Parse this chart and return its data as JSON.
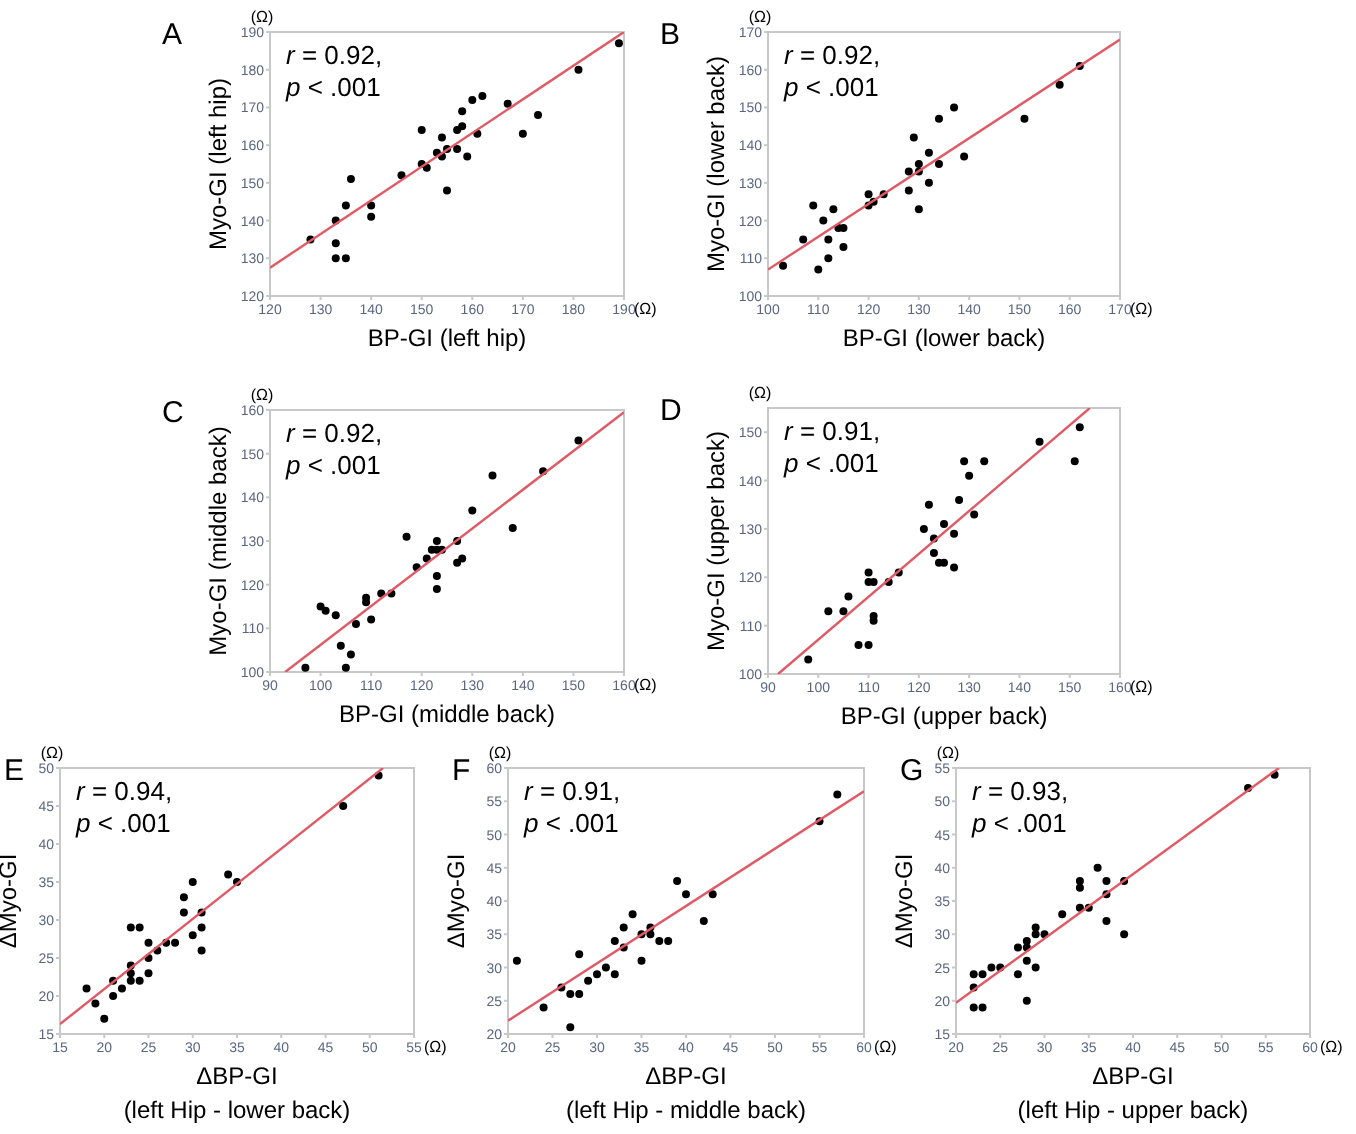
{
  "chart_data": [
    {
      "type": "scatter",
      "title": "A",
      "xlabel": "BP-GI (left hip)",
      "ylabel": "Myo-GI (left hip)",
      "annotations": [
        "r = 0.92,",
        "p < .001",
        "(Ω)",
        "(Ω)"
      ],
      "grid": false,
      "xlim": [
        120,
        190
      ],
      "ylim": [
        120,
        190
      ],
      "xticks": [
        120,
        130,
        140,
        150,
        160,
        170,
        180,
        190
      ],
      "yticks": [
        120,
        130,
        140,
        150,
        160,
        170,
        180,
        190
      ],
      "series": [
        {
          "type": "scatter",
          "marker": "circle",
          "color": "#000000",
          "x": [
            128,
            133,
            133,
            133,
            135,
            135,
            136,
            140,
            140,
            146,
            150,
            150,
            151,
            153,
            154,
            154,
            155,
            155,
            157,
            157,
            158,
            158,
            159,
            160,
            161,
            162,
            167,
            170,
            173,
            181,
            189
          ],
          "values": [
            135,
            140,
            134,
            130,
            130,
            144,
            151,
            144,
            141,
            152,
            164,
            155,
            154,
            158,
            162,
            157,
            159,
            148,
            164,
            159,
            169,
            165,
            157,
            172,
            163,
            173,
            171,
            163,
            168,
            180,
            187
          ]
        },
        {
          "type": "line",
          "color": "#e05a66",
          "x": [
            120,
            190
          ],
          "values": [
            127.5,
            190
          ]
        }
      ]
    },
    {
      "type": "scatter",
      "title": "B",
      "xlabel": "BP-GI (lower back)",
      "ylabel": "Myo-GI (lower back)",
      "annotations": [
        "r = 0.92,",
        "p < .001",
        "(Ω)",
        "(Ω)"
      ],
      "grid": false,
      "xlim": [
        100,
        170
      ],
      "ylim": [
        100,
        170
      ],
      "xticks": [
        100,
        110,
        120,
        130,
        140,
        150,
        160,
        170
      ],
      "yticks": [
        100,
        110,
        120,
        130,
        140,
        150,
        160,
        170
      ],
      "series": [
        {
          "type": "scatter",
          "marker": "circle",
          "color": "#000000",
          "x": [
            103,
            107,
            109,
            110,
            111,
            112,
            112,
            113,
            114,
            115,
            115,
            120,
            120,
            121,
            123,
            128,
            128,
            129,
            130,
            130,
            130,
            132,
            132,
            134,
            134,
            137,
            139,
            151,
            158,
            162
          ],
          "values": [
            108,
            115,
            124,
            107,
            120,
            115,
            110,
            123,
            118,
            118,
            113,
            127,
            124,
            125,
            127,
            133,
            128,
            142,
            135,
            133,
            123,
            138,
            130,
            135,
            147,
            150,
            137,
            147,
            156,
            161
          ]
        },
        {
          "type": "line",
          "color": "#e05a66",
          "x": [
            100,
            170
          ],
          "values": [
            107,
            168
          ]
        }
      ]
    },
    {
      "type": "scatter",
      "title": "C",
      "xlabel": "BP-GI (middle back)",
      "ylabel": "Myo-GI (middle back)",
      "annotations": [
        "r = 0.92,",
        "p < .001",
        "(Ω)",
        "(Ω)"
      ],
      "grid": false,
      "xlim": [
        90,
        160
      ],
      "ylim": [
        100,
        160
      ],
      "xticks": [
        90,
        100,
        110,
        120,
        130,
        140,
        150,
        160
      ],
      "yticks": [
        100,
        110,
        120,
        130,
        140,
        150,
        160
      ],
      "series": [
        {
          "type": "scatter",
          "marker": "circle",
          "color": "#000000",
          "x": [
            97,
            100,
            101,
            103,
            104,
            105,
            106,
            107,
            109,
            109,
            110,
            112,
            114,
            117,
            119,
            121,
            122,
            123,
            123,
            123,
            123,
            124,
            127,
            127,
            128,
            130,
            134,
            138,
            144,
            151
          ],
          "values": [
            101,
            115,
            114,
            113,
            106,
            101,
            104,
            111,
            117,
            116,
            112,
            118,
            118,
            131,
            124,
            126,
            128,
            130,
            128,
            122,
            119,
            128,
            130,
            125,
            126,
            137,
            145,
            133,
            146,
            153
          ]
        },
        {
          "type": "line",
          "color": "#e05a66",
          "x": [
            93,
            160
          ],
          "values": [
            100,
            159.5
          ]
        }
      ]
    },
    {
      "type": "scatter",
      "title": "D",
      "xlabel": "BP-GI (upper back)",
      "ylabel": "Myo-GI (upper back)",
      "annotations": [
        "r = 0.91,",
        "p < .001",
        "(Ω)",
        "(Ω)"
      ],
      "grid": false,
      "xlim": [
        90,
        160
      ],
      "ylim": [
        100,
        155
      ],
      "xticks": [
        90,
        100,
        110,
        120,
        130,
        140,
        150,
        160
      ],
      "yticks": [
        100,
        110,
        120,
        130,
        140,
        150
      ],
      "series": [
        {
          "type": "scatter",
          "marker": "circle",
          "color": "#000000",
          "x": [
            98,
            102,
            105,
            106,
            108,
            110,
            110,
            110,
            111,
            111,
            111,
            114,
            116,
            121,
            122,
            123,
            123,
            124,
            125,
            125,
            127,
            127,
            128,
            129,
            130,
            131,
            133,
            144,
            151,
            152
          ],
          "values": [
            103,
            113,
            113,
            116,
            106,
            106,
            121,
            119,
            119,
            112,
            111,
            119,
            121,
            130,
            135,
            128,
            125,
            123,
            123,
            131,
            129,
            122,
            136,
            144,
            141,
            133,
            144,
            148,
            144,
            151
          ]
        },
        {
          "type": "line",
          "color": "#e05a66",
          "x": [
            92,
            154
          ],
          "values": [
            100,
            155
          ]
        }
      ]
    },
    {
      "type": "scatter",
      "title": "E",
      "xlabel": "ΔBP-GI\n(left Hip - lower back)",
      "ylabel": "ΔMyo-GI",
      "annotations": [
        "r = 0.94,",
        "p < .001",
        "(Ω)",
        "(Ω)"
      ],
      "grid": false,
      "xlim": [
        15,
        55
      ],
      "ylim": [
        15,
        50
      ],
      "xticks": [
        15,
        20,
        25,
        30,
        35,
        40,
        45,
        50,
        55
      ],
      "yticks": [
        15,
        20,
        25,
        30,
        35,
        40,
        45,
        50
      ],
      "series": [
        {
          "type": "scatter",
          "marker": "circle",
          "color": "#000000",
          "x": [
            18,
            19,
            20,
            21,
            21,
            22,
            23,
            23,
            23,
            23,
            24,
            24,
            25,
            25,
            25,
            26,
            27,
            28,
            29,
            29,
            30,
            30,
            31,
            31,
            31,
            34,
            35,
            47,
            51
          ],
          "values": [
            21,
            19,
            17,
            22,
            20,
            21,
            29,
            24,
            23,
            22,
            29,
            22,
            27,
            25,
            23,
            26,
            27,
            27,
            33,
            31,
            35,
            28,
            31,
            29,
            26,
            36,
            35,
            45,
            49
          ]
        },
        {
          "type": "line",
          "color": "#e05a66",
          "x": [
            15,
            51.5
          ],
          "values": [
            16.3,
            50
          ]
        }
      ]
    },
    {
      "type": "scatter",
      "title": "F",
      "xlabel": "ΔBP-GI\n(left Hip - middle back)",
      "ylabel": "ΔMyo-GI",
      "annotations": [
        "r = 0.91,",
        "p < .001",
        "(Ω)",
        "(Ω)"
      ],
      "grid": false,
      "xlim": [
        20,
        60
      ],
      "ylim": [
        20,
        60
      ],
      "xticks": [
        20,
        25,
        30,
        35,
        40,
        45,
        50,
        55,
        60
      ],
      "yticks": [
        20,
        25,
        30,
        35,
        40,
        45,
        50,
        55,
        60
      ],
      "series": [
        {
          "type": "scatter",
          "marker": "circle",
          "color": "#000000",
          "x": [
            21,
            24,
            26,
            27,
            27,
            28,
            28,
            29,
            30,
            31,
            32,
            32,
            33,
            33,
            35,
            35,
            34,
            36,
            36,
            37,
            38,
            39,
            40,
            42,
            43,
            55,
            57
          ],
          "values": [
            31,
            24,
            27,
            26,
            21,
            32,
            26,
            28,
            29,
            30,
            34,
            29,
            36,
            33,
            35,
            31,
            38,
            36,
            35,
            34,
            34,
            43,
            41,
            37,
            41,
            52,
            56
          ]
        },
        {
          "type": "line",
          "color": "#e05a66",
          "x": [
            20,
            60
          ],
          "values": [
            22,
            56.5
          ]
        }
      ]
    },
    {
      "type": "scatter",
      "title": "G",
      "xlabel": "ΔBP-GI\n(left Hip - upper back)",
      "ylabel": "ΔMyo-GI",
      "annotations": [
        "r = 0.93,",
        "p < .001",
        "(Ω)",
        "(Ω)"
      ],
      "grid": false,
      "xlim": [
        20,
        60
      ],
      "ylim": [
        15,
        55
      ],
      "xticks": [
        20,
        25,
        30,
        35,
        40,
        45,
        50,
        55,
        60
      ],
      "yticks": [
        15,
        20,
        25,
        30,
        35,
        40,
        45,
        50,
        55
      ],
      "series": [
        {
          "type": "scatter",
          "marker": "circle",
          "color": "#000000",
          "x": [
            22,
            22,
            22,
            23,
            23,
            24,
            25,
            27,
            27,
            28,
            28,
            28,
            28,
            29,
            29,
            29,
            30,
            32,
            34,
            34,
            34,
            35,
            36,
            37,
            37,
            37,
            39,
            39,
            53,
            56
          ],
          "values": [
            24,
            22,
            19,
            24,
            19,
            25,
            25,
            28,
            24,
            29,
            28,
            26,
            20,
            31,
            30,
            25,
            30,
            33,
            38,
            37,
            34,
            34,
            40,
            38,
            36,
            32,
            38,
            30,
            52,
            54
          ]
        },
        {
          "type": "line",
          "color": "#e05a66",
          "x": [
            20,
            56.5
          ],
          "values": [
            19.7,
            55
          ]
        }
      ]
    }
  ]
}
